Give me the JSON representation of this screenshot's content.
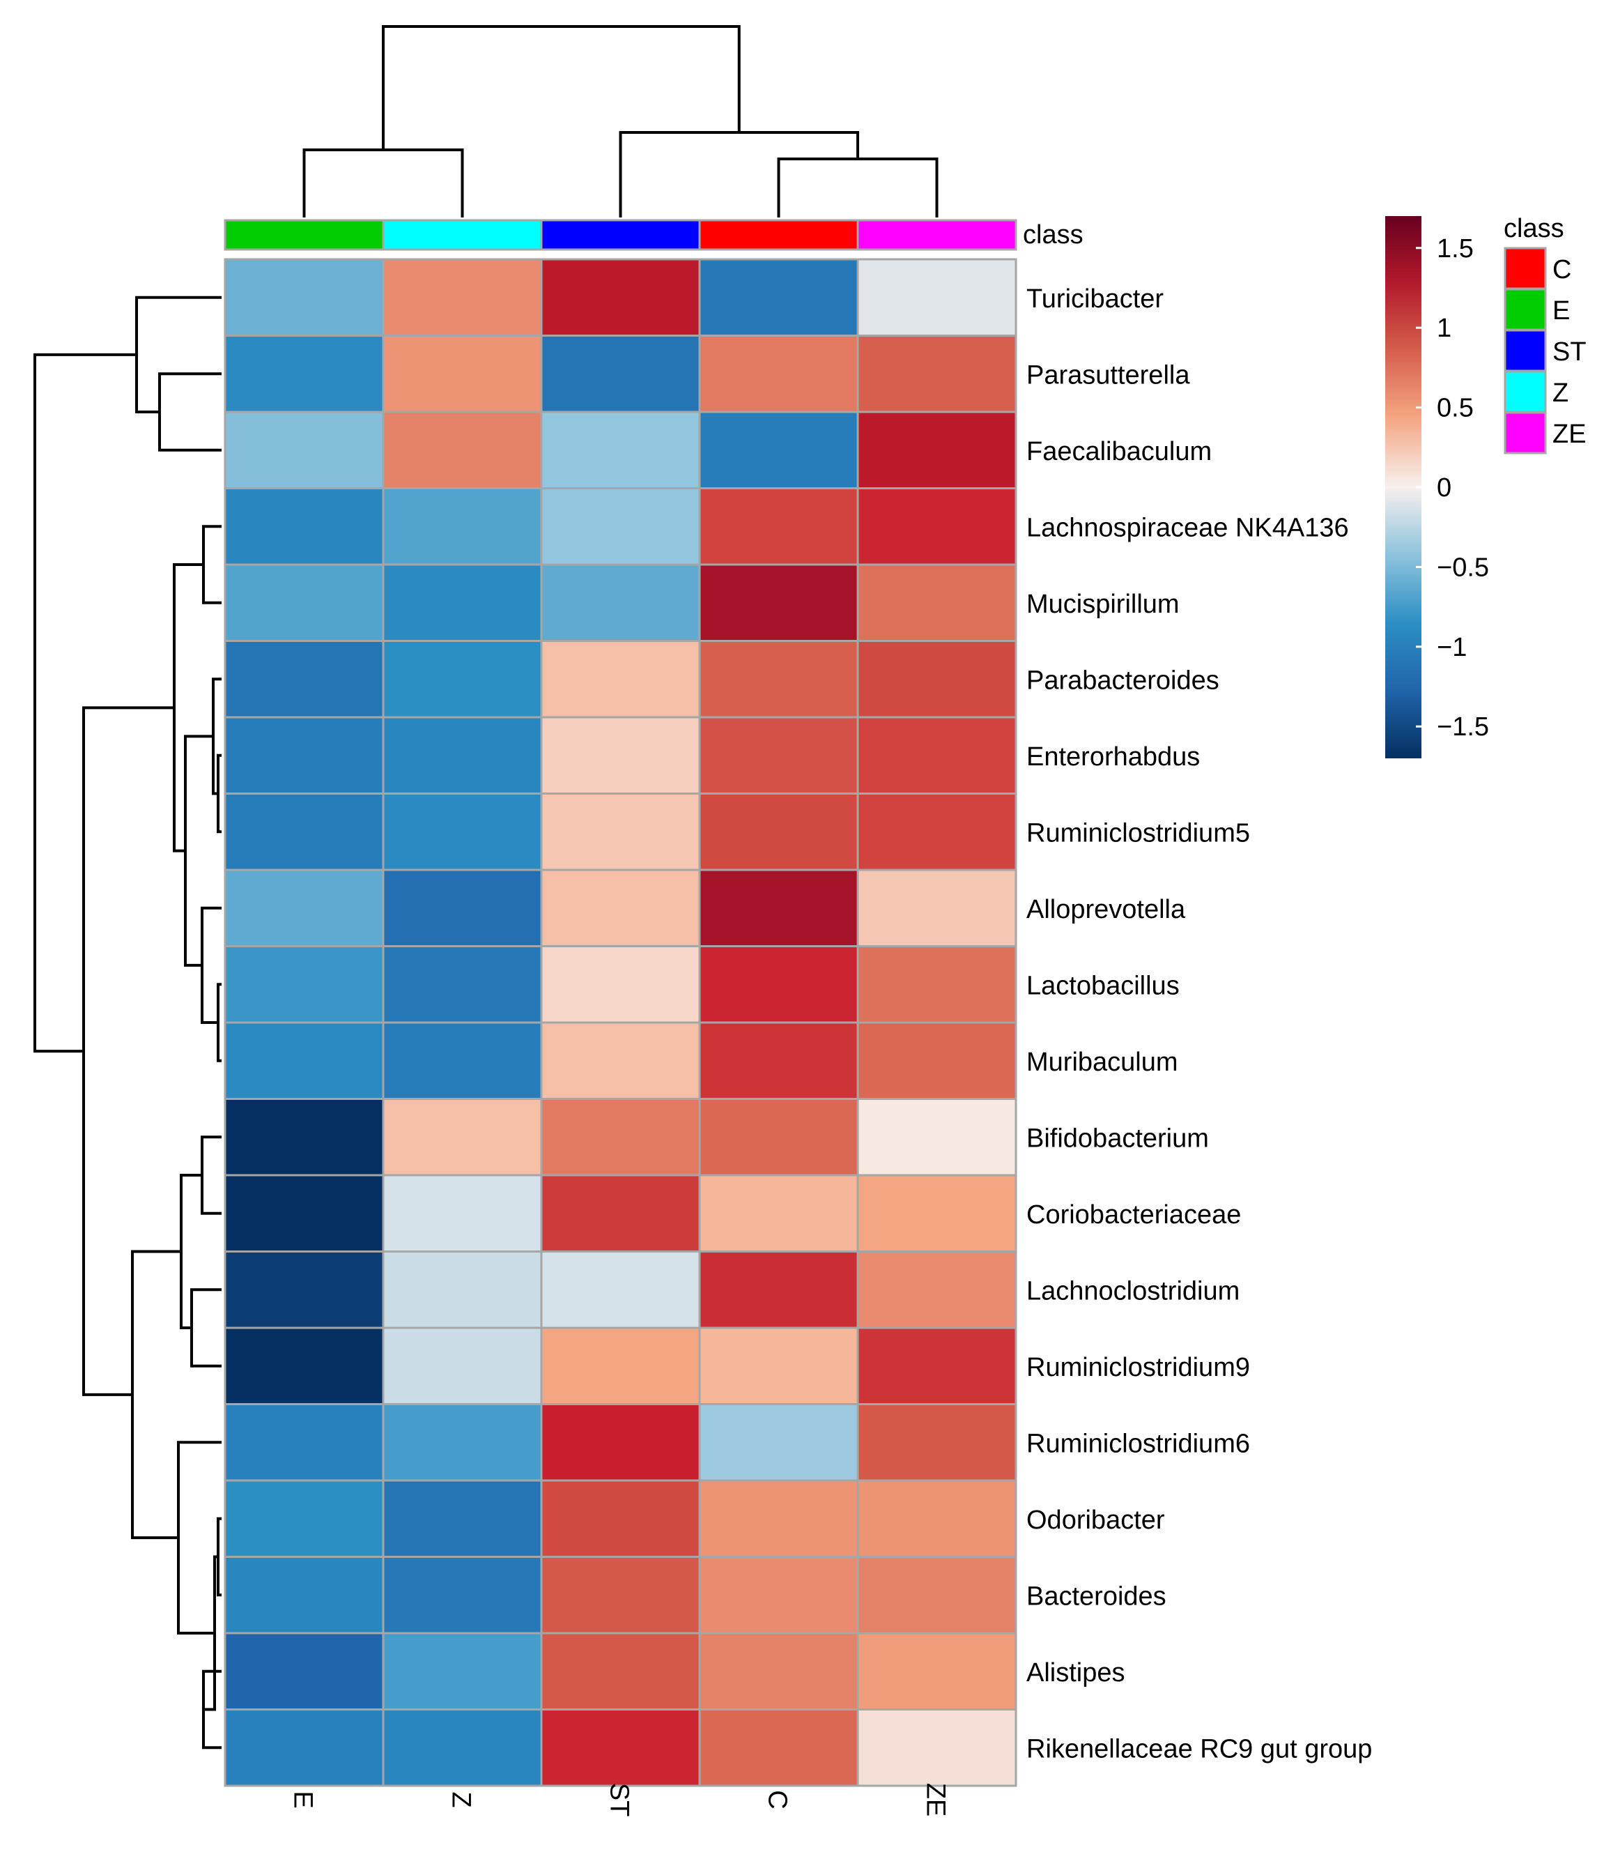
{
  "chart_data": {
    "type": "heatmap",
    "title": "",
    "columns": [
      "E",
      "Z",
      "ST",
      "C",
      "ZE"
    ],
    "column_classes": [
      "E",
      "Z",
      "ST",
      "C",
      "ZE"
    ],
    "rows": [
      "Turicibacter",
      "Parasutterella",
      "Faecalibaculum",
      "Lachnospiraceae NK4A136",
      "Mucispirillum",
      "Parabacteroides",
      "Enterorhabdus",
      "Ruminiclostridium5",
      "Alloprevotella",
      "Lactobacillus",
      "Muribaculum",
      "Bifidobacterium",
      "Coriobacteriaceae",
      "Lachnoclostridium",
      "Ruminiclostridium9",
      "Ruminiclostridium6",
      "Odoribacter",
      "Bacteroides",
      "Alistipes",
      "Rikenellaceae RC9 gut group"
    ],
    "values": [
      [
        -0.6,
        0.6,
        1.35,
        -1.1,
        -0.1
      ],
      [
        -0.9,
        0.55,
        -1.15,
        0.7,
        0.85
      ],
      [
        -0.5,
        0.65,
        -0.45,
        -1.05,
        1.35
      ],
      [
        -0.95,
        -0.7,
        -0.45,
        1.05,
        1.25
      ],
      [
        -0.7,
        -0.9,
        -0.65,
        1.45,
        0.75
      ],
      [
        -1.15,
        -0.85,
        0.3,
        0.85,
        1.0
      ],
      [
        -1.05,
        -0.95,
        0.2,
        0.95,
        1.05
      ],
      [
        -1.05,
        -0.9,
        0.25,
        1.0,
        1.05
      ],
      [
        -0.65,
        -1.2,
        0.3,
        1.45,
        0.25
      ],
      [
        -0.8,
        -1.1,
        0.15,
        1.25,
        0.75
      ],
      [
        -0.9,
        -1.05,
        0.3,
        1.15,
        0.8
      ],
      [
        -1.75,
        0.3,
        0.7,
        0.8,
        0.05
      ],
      [
        -1.7,
        -0.15,
        1.1,
        0.35,
        0.45
      ],
      [
        -1.6,
        -0.2,
        -0.15,
        1.2,
        0.6
      ],
      [
        -1.7,
        -0.2,
        0.45,
        0.35,
        1.15
      ],
      [
        -1.0,
        -0.75,
        1.3,
        -0.4,
        0.9
      ],
      [
        -0.85,
        -1.15,
        1.0,
        0.55,
        0.55
      ],
      [
        -0.95,
        -1.1,
        0.9,
        0.6,
        0.65
      ],
      [
        -1.3,
        -0.75,
        0.9,
        0.65,
        0.5
      ],
      [
        -1.0,
        -0.95,
        1.25,
        0.8,
        0.1
      ]
    ],
    "color_range": [
      -1.7,
      1.7
    ],
    "colorbar_ticks": [
      "1.5",
      "1",
      "0.5",
      "0",
      "−0.5",
      "−1",
      "−1.5"
    ],
    "colorbar_tick_values": [
      1.5,
      1,
      0.5,
      0,
      -0.5,
      -1,
      -1.5
    ],
    "annotation_label": "class",
    "legend": {
      "title": "class",
      "entries": [
        {
          "label": "C",
          "color": "#ff0000"
        },
        {
          "label": "E",
          "color": "#00cd00"
        },
        {
          "label": "ST",
          "color": "#0000ff"
        },
        {
          "label": "Z",
          "color": "#00ffff"
        },
        {
          "label": "ZE",
          "color": "#ff00ff"
        }
      ],
      "placement": "right"
    },
    "column_dendrogram": {
      "merges": [
        [
          0,
          1
        ],
        [
          3,
          4
        ],
        [
          2,
          -2
        ],
        [
          -1,
          -3
        ]
      ],
      "heights": [
        0.45,
        0.45,
        0.75,
        1.0
      ]
    },
    "row_dendrogram": {
      "order_note": "hierarchical clustering of rows; leaves in displayed order"
    }
  }
}
